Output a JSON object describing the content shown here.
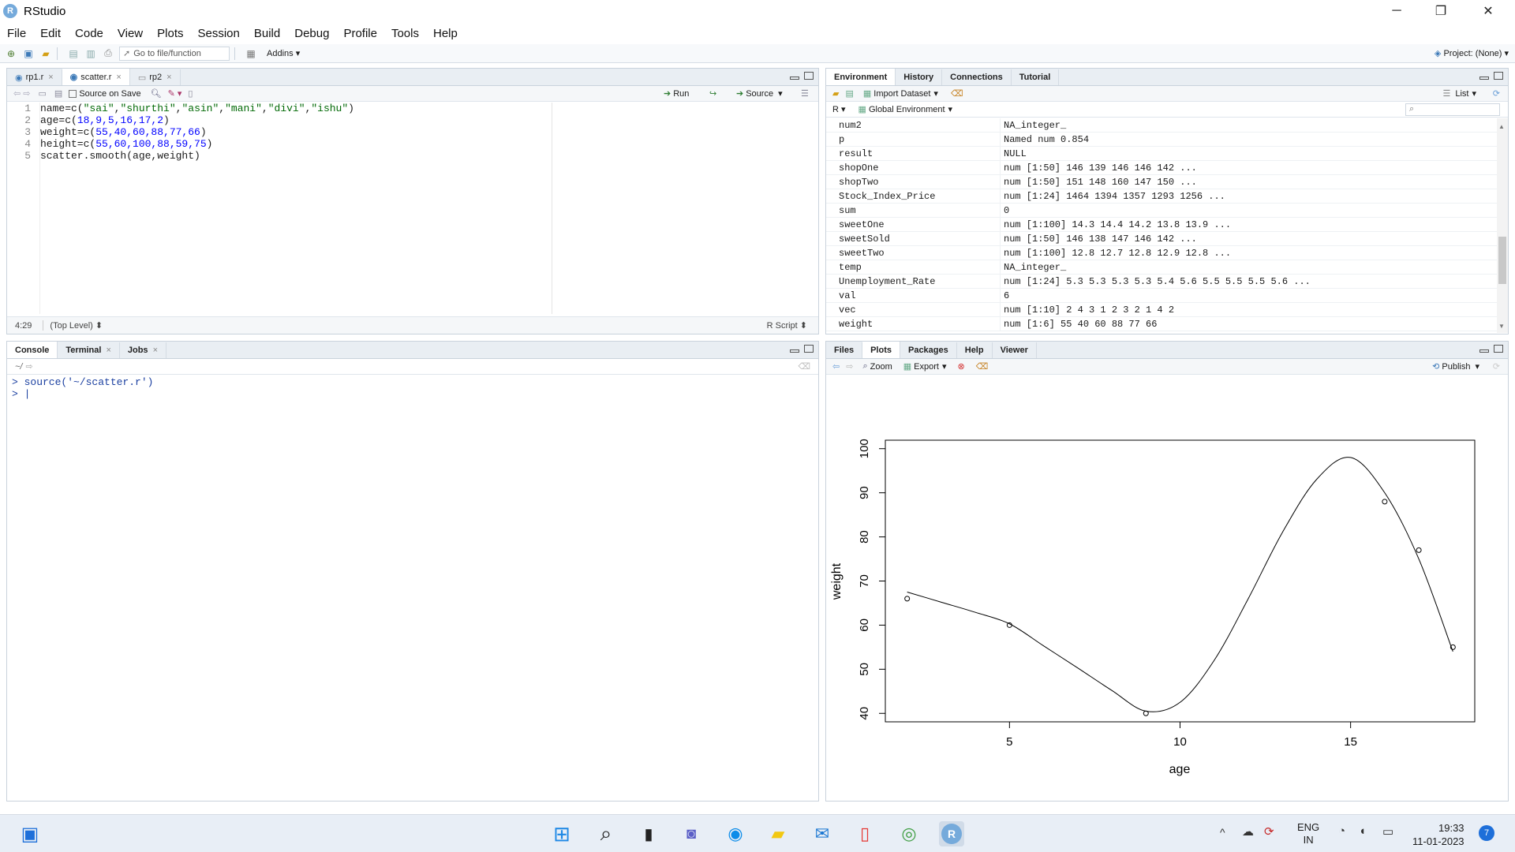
{
  "window": {
    "title": "RStudio",
    "logo_letter": "R"
  },
  "menu": [
    "File",
    "Edit",
    "Code",
    "View",
    "Plots",
    "Session",
    "Build",
    "Debug",
    "Profile",
    "Tools",
    "Help"
  ],
  "toolbar": {
    "goto_placeholder": "Go to file/function",
    "addins_label": "Addins",
    "project_label": "Project: (None)"
  },
  "editor": {
    "tabs": [
      {
        "label": "rp1.r",
        "active": false
      },
      {
        "label": "scatter.r",
        "active": true
      },
      {
        "label": "rp2",
        "active": false
      }
    ],
    "source_on_save": "Source on Save",
    "run_label": "Run",
    "source_label": "Source",
    "code_lines": [
      {
        "n": "1",
        "parts": [
          [
            "name=c(",
            ""
          ],
          [
            "\"sai\"",
            "str"
          ],
          [
            ",",
            ""
          ],
          [
            "\"shurthi\"",
            "str"
          ],
          [
            ",",
            ""
          ],
          [
            "\"asin\"",
            "str"
          ],
          [
            ",",
            ""
          ],
          [
            "\"mani\"",
            "str"
          ],
          [
            ",",
            ""
          ],
          [
            "\"divi\"",
            "str"
          ],
          [
            ",",
            ""
          ],
          [
            "\"ishu\"",
            "str"
          ],
          [
            ")",
            ""
          ]
        ]
      },
      {
        "n": "2",
        "parts": [
          [
            "age=c(",
            ""
          ],
          [
            "18,9,5,16,17,2",
            "num"
          ],
          [
            ")",
            ""
          ]
        ]
      },
      {
        "n": "3",
        "parts": [
          [
            "weight=c(",
            ""
          ],
          [
            "55,40,60,88,77,66",
            "num"
          ],
          [
            ")",
            ""
          ]
        ]
      },
      {
        "n": "4",
        "parts": [
          [
            "height=c(",
            ""
          ],
          [
            "55,60,100,88,59,75",
            "num"
          ],
          [
            ")",
            ""
          ]
        ]
      },
      {
        "n": "5",
        "parts": [
          [
            "scatter.smooth(age,weight)",
            ""
          ]
        ]
      }
    ],
    "status_pos": "4:29",
    "status_scope": "(Top Level) ⬍",
    "status_type": "R Script ⬍"
  },
  "console": {
    "tabs": [
      "Console",
      "Terminal",
      "Jobs"
    ],
    "path": "~/",
    "lines": [
      "> source('~/scatter.r')",
      "> |"
    ]
  },
  "environment": {
    "tabs": [
      "Environment",
      "History",
      "Connections",
      "Tutorial"
    ],
    "import_label": "Import Dataset",
    "list_label": "List",
    "lang_label": "R",
    "scope_label": "Global Environment",
    "rows": [
      [
        "num2",
        "NA_integer_"
      ],
      [
        "p",
        "Named num 0.854"
      ],
      [
        "result",
        "NULL"
      ],
      [
        "shopOne",
        "num [1:50] 146 139 146 146 142 ..."
      ],
      [
        "shopTwo",
        "num [1:50] 151 148 160 147 150 ..."
      ],
      [
        "Stock_Index_Price",
        "num [1:24] 1464 1394 1357 1293 1256 ..."
      ],
      [
        "sum",
        "0"
      ],
      [
        "sweetOne",
        "num [1:100] 14.3 14.4 14.2 13.8 13.9 ..."
      ],
      [
        "sweetSold",
        "num [1:50] 146 138 147 146 142 ..."
      ],
      [
        "sweetTwo",
        "num [1:100] 12.8 12.7 12.8 12.9 12.8 ..."
      ],
      [
        "temp",
        "NA_integer_"
      ],
      [
        "Unemployment_Rate",
        "num [1:24] 5.3 5.3 5.3 5.3 5.4 5.6 5.5 5.5 5.5 5.6 ..."
      ],
      [
        "val",
        "6"
      ],
      [
        "vec",
        "num [1:10] 2 4 3 1 2 3 2 1 4 2"
      ],
      [
        "weight",
        "num [1:6] 55 40 60 88 77 66"
      ]
    ]
  },
  "files_pane": {
    "tabs": [
      "Files",
      "Plots",
      "Packages",
      "Help",
      "Viewer"
    ],
    "zoom_label": "Zoom",
    "export_label": "Export",
    "publish_label": "Publish"
  },
  "chart_data": {
    "type": "scatter",
    "xlabel": "age",
    "ylabel": "weight",
    "x": [
      18,
      9,
      5,
      16,
      17,
      2
    ],
    "y": [
      55,
      40,
      60,
      88,
      77,
      66
    ],
    "xlim": [
      1.36,
      18.64
    ],
    "ylim": [
      38.08,
      101.92
    ],
    "xticks": [
      "5",
      "10",
      "15"
    ],
    "yticks": [
      "40",
      "50",
      "60",
      "70",
      "80",
      "90",
      "100"
    ],
    "smooth_curve": [
      [
        2,
        67.5
      ],
      [
        3,
        65.2
      ],
      [
        4,
        62.9
      ],
      [
        5,
        60.3
      ],
      [
        6,
        55.3
      ],
      [
        7,
        50.3
      ],
      [
        8,
        45.2
      ],
      [
        9,
        40.5
      ],
      [
        10,
        42.5
      ],
      [
        11,
        52
      ],
      [
        12,
        66
      ],
      [
        13,
        81
      ],
      [
        14,
        93
      ],
      [
        15,
        98
      ],
      [
        16,
        90
      ],
      [
        17,
        75
      ],
      [
        18,
        54
      ]
    ],
    "grid": false
  },
  "taskbar": {
    "lang_top": "ENG",
    "lang_bottom": "IN",
    "time": "19:33",
    "date": "11-01-2023",
    "notif_count": "7"
  }
}
